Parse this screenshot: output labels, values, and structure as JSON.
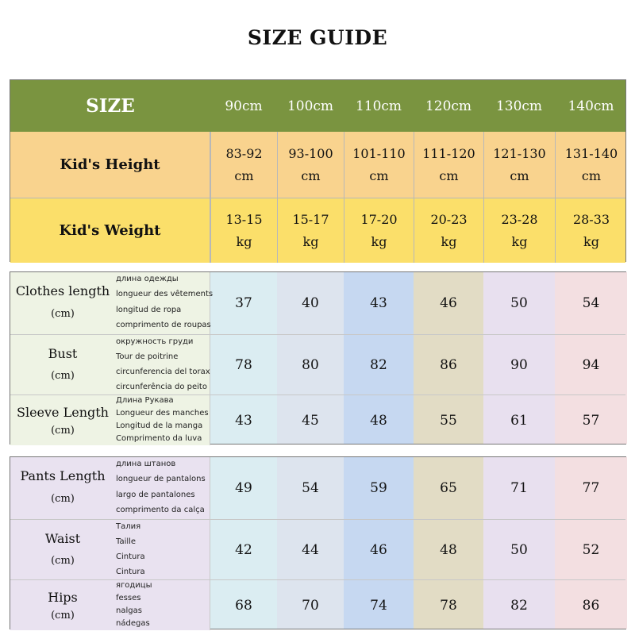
{
  "title": "SIZE GUIDE",
  "colors": {
    "header": "#7a9440",
    "height_row": "#f9d38e",
    "weight_row": "#fbdf6a",
    "label_top": "#eef3e4",
    "label_bottom": "#e9e2f0",
    "col_fills": [
      "#dbedf2",
      "#dde4ee",
      "#c6d8f1",
      "#e2dcc5",
      "#e8e0ef",
      "#f3dfe1"
    ]
  },
  "header": {
    "size_label": "SIZE",
    "sizes": [
      "90cm",
      "100cm",
      "110cm",
      "120cm",
      "130cm",
      "140cm"
    ]
  },
  "height": {
    "label": "Kid's Height",
    "values": [
      "83-92",
      "93-100",
      "101-110",
      "111-120",
      "121-130",
      "131-140"
    ],
    "unit": "cm"
  },
  "weight": {
    "label": "Kid's Weight",
    "values": [
      "13-15",
      "15-17",
      "17-20",
      "20-23",
      "23-28",
      "28-33"
    ],
    "unit": "kg"
  },
  "top_rows": [
    {
      "name": "Clothes length",
      "unit": "(cm)",
      "translations": [
        "длина одежды",
        "longueur des vêtements",
        "longitud de ropa",
        "comprimento de roupas"
      ],
      "values": [
        "37",
        "40",
        "43",
        "46",
        "50",
        "54"
      ]
    },
    {
      "name": "Bust",
      "unit": "(cm)",
      "translations": [
        "окружность груди",
        "Tour de poitrine",
        "circunferencia del torax",
        "circunferência do peito"
      ],
      "values": [
        "78",
        "80",
        "82",
        "86",
        "90",
        "94"
      ]
    },
    {
      "name": "Sleeve Length",
      "unit": "(cm)",
      "translations": [
        "Длина Рукава",
        "Longueur des manches",
        "Longitud de la manga",
        "Comprimento da luva"
      ],
      "values": [
        "43",
        "45",
        "48",
        "55",
        "61",
        "57"
      ]
    }
  ],
  "bottom_rows": [
    {
      "name": "Pants Length",
      "unit": "(cm)",
      "translations": [
        "длина штанов",
        "longueur de pantalons",
        "largo de pantalones",
        "comprimento da calça"
      ],
      "values": [
        "49",
        "54",
        "59",
        "65",
        "71",
        "77"
      ]
    },
    {
      "name": "Waist",
      "unit": "(cm)",
      "translations": [
        "Талия",
        "Taille",
        "Cintura",
        "Cintura"
      ],
      "values": [
        "42",
        "44",
        "46",
        "48",
        "50",
        "52"
      ]
    },
    {
      "name": "Hips",
      "unit": "(cm)",
      "translations": [
        "ягодицы",
        "fesses",
        "nalgas",
        "nádegas"
      ],
      "values": [
        "68",
        "70",
        "74",
        "78",
        "82",
        "86"
      ]
    }
  ]
}
